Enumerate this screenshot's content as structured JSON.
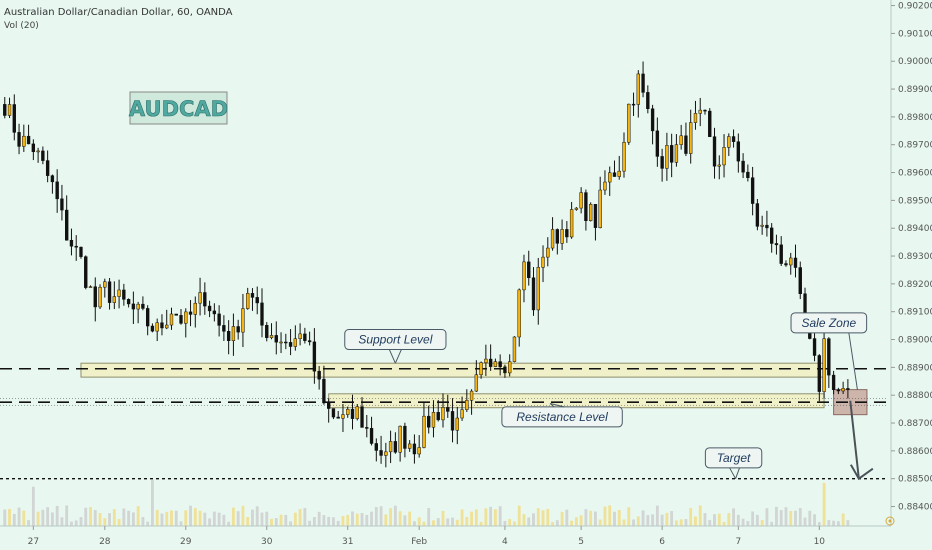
{
  "header": {
    "symbol": "Australian Dollar/Canadian Dollar, 60, OANDA",
    "indicator": "Vol (20)"
  },
  "logo_text": "AUDCAD",
  "chart_data": {
    "type": "candlestick",
    "colors": {
      "up": "#f5b40f",
      "down": "#111111",
      "background": "#e8f8f1"
    },
    "ylim": [
      0.8833,
      0.9022
    ],
    "y_ticks": [
      "0.90200",
      "0.90100",
      "0.90000",
      "0.89900",
      "0.89800",
      "0.89700",
      "0.89600",
      "0.89500",
      "0.89400",
      "0.89300",
      "0.89200",
      "0.89100",
      "0.89000",
      "0.88900",
      "0.88800",
      "0.88700",
      "0.88600",
      "0.88500",
      "0.88400"
    ],
    "x_ticks": [
      "27",
      "28",
      "29",
      "30",
      "31",
      "Feb",
      "4",
      "5",
      "6",
      "7",
      "10"
    ],
    "x_tick_index": [
      6,
      21,
      38,
      55,
      72,
      87,
      105,
      121,
      138,
      154,
      171
    ],
    "x_index_range": [
      -1,
      185
    ],
    "price_path": [
      [
        0,
        0.8985
      ],
      [
        3,
        0.8972
      ],
      [
        6,
        0.8969
      ],
      [
        10,
        0.8955
      ],
      [
        13,
        0.8938
      ],
      [
        16,
        0.8928
      ],
      [
        19,
        0.8912
      ],
      [
        21,
        0.8918
      ],
      [
        24,
        0.8914
      ],
      [
        28,
        0.8909
      ],
      [
        32,
        0.8903
      ],
      [
        35,
        0.8911
      ],
      [
        38,
        0.8906
      ],
      [
        42,
        0.8916
      ],
      [
        45,
        0.8905
      ],
      [
        48,
        0.8901
      ],
      [
        51,
        0.8918
      ],
      [
        54,
        0.8905
      ],
      [
        57,
        0.8901
      ],
      [
        60,
        0.8899
      ],
      [
        63,
        0.8902
      ],
      [
        65,
        0.8889
      ],
      [
        67,
        0.8876
      ],
      [
        69,
        0.8872
      ],
      [
        72,
        0.8871
      ],
      [
        74,
        0.8874
      ],
      [
        77,
        0.8864
      ],
      [
        80,
        0.8857
      ],
      [
        83,
        0.8866
      ],
      [
        86,
        0.8862
      ],
      [
        89,
        0.8871
      ],
      [
        92,
        0.8876
      ],
      [
        95,
        0.8868
      ],
      [
        98,
        0.8878
      ],
      [
        101,
        0.8895
      ],
      [
        104,
        0.8894
      ],
      [
        106,
        0.8891
      ],
      [
        109,
        0.8928
      ],
      [
        111,
        0.8913
      ],
      [
        113,
        0.8932
      ],
      [
        116,
        0.8938
      ],
      [
        119,
        0.8943
      ],
      [
        121,
        0.8949
      ],
      [
        124,
        0.8943
      ],
      [
        126,
        0.8956
      ],
      [
        129,
        0.8963
      ],
      [
        131,
        0.8984
      ],
      [
        133,
        0.8993
      ],
      [
        134,
        0.8987
      ],
      [
        136,
        0.8975
      ],
      [
        138,
        0.8965
      ],
      [
        140,
        0.8967
      ],
      [
        143,
        0.8971
      ],
      [
        145,
        0.8978
      ],
      [
        147,
        0.8978
      ],
      [
        149,
        0.8963
      ],
      [
        151,
        0.8967
      ],
      [
        153,
        0.8972
      ],
      [
        155,
        0.8961
      ],
      [
        158,
        0.8942
      ],
      [
        161,
        0.8936
      ],
      [
        163,
        0.8928
      ],
      [
        165,
        0.8931
      ],
      [
        167,
        0.8912
      ],
      [
        169,
        0.8897
      ],
      [
        171,
        0.8884
      ],
      [
        172,
        0.8899
      ],
      [
        174,
        0.8882
      ],
      [
        176,
        0.888
      ],
      [
        177,
        0.8878
      ]
    ],
    "volume": [
      {
        "index": 6,
        "value": 0.82
      },
      {
        "index": 31,
        "value": 0.96
      },
      {
        "index": 172,
        "value": 0.9
      }
    ],
    "levels": [
      {
        "name": "support",
        "price": 0.88895,
        "style": "dashed"
      },
      {
        "name": "resistance",
        "price": 0.88775,
        "style": "dashed"
      },
      {
        "name": "target",
        "price": 0.885,
        "style": "dotted"
      }
    ],
    "zones": [
      {
        "name": "support-zone",
        "price_low": 0.88865,
        "price_high": 0.88915,
        "index_from": 16,
        "index_to": 172
      },
      {
        "name": "resistance-zone",
        "price_low": 0.88755,
        "price_high": 0.88805,
        "index_from": 68,
        "index_to": 172
      },
      {
        "name": "sale-zone",
        "price_low": 0.8873,
        "price_high": 0.8882,
        "index_from": 174,
        "index_to": 181
      }
    ],
    "annotations": [
      {
        "text": "Support Level",
        "index": 82,
        "price": 0.89
      },
      {
        "text": "Resistance Level",
        "index": 117,
        "price": 0.88722
      },
      {
        "text": "Target",
        "index": 153,
        "price": 0.88575
      },
      {
        "text": "Sale Zone",
        "index": 173,
        "price": 0.8906
      }
    ]
  }
}
